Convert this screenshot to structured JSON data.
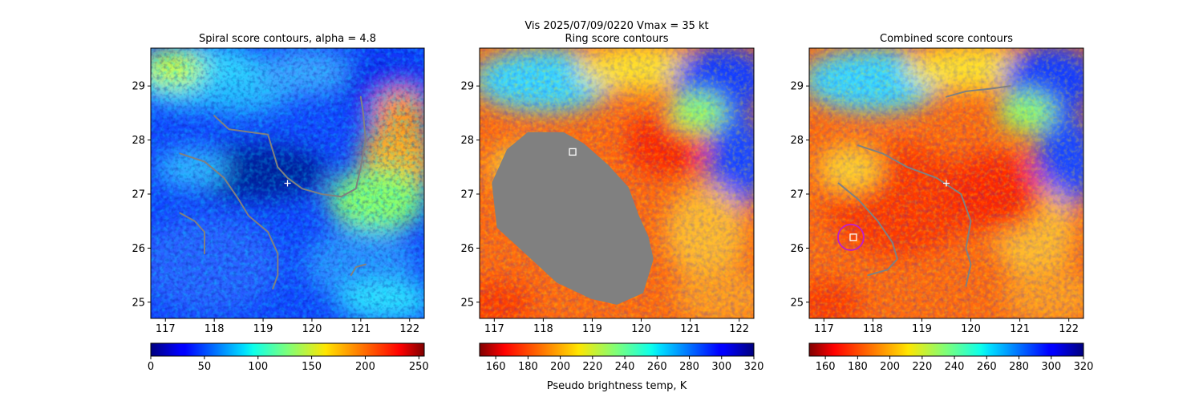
{
  "suptitle": "Vis  2025/07/09/0220    Vmax = 35 kt",
  "chart_data": [
    {
      "type": "heatmap",
      "title": "Spiral score contours, alpha =  4.8",
      "xlim": [
        116.7,
        122.3
      ],
      "ylim": [
        24.7,
        29.7
      ],
      "xticks": [
        "117",
        "118",
        "119",
        "120",
        "121",
        "122"
      ],
      "yticks": [
        "25",
        "26",
        "27",
        "28",
        "29"
      ],
      "xtick_values": [
        117,
        118,
        119,
        120,
        121,
        122
      ],
      "ytick_values": [
        25,
        26,
        27,
        28,
        29
      ],
      "colormap": "jet",
      "colorbar": {
        "range": [
          0,
          255
        ],
        "reversed": false,
        "ticks": [
          "0",
          "50",
          "100",
          "150",
          "200",
          "250"
        ],
        "tick_values": [
          0,
          50,
          100,
          150,
          200,
          250
        ],
        "label": ""
      },
      "contours": [
        [
          [
            118.0,
            28.45
          ],
          [
            118.3,
            28.2
          ],
          [
            118.7,
            28.15
          ],
          [
            119.1,
            28.1
          ],
          [
            119.2,
            27.8
          ],
          [
            119.3,
            27.5
          ],
          [
            119.5,
            27.3
          ],
          [
            119.8,
            27.1
          ],
          [
            120.2,
            27.0
          ],
          [
            120.6,
            26.95
          ],
          [
            120.9,
            27.1
          ],
          [
            121.0,
            27.5
          ],
          [
            121.1,
            28.0
          ],
          [
            121.05,
            28.5
          ],
          [
            121.0,
            28.8
          ]
        ],
        [
          [
            117.3,
            27.75
          ],
          [
            117.8,
            27.6
          ],
          [
            118.2,
            27.3
          ],
          [
            118.5,
            26.9
          ],
          [
            118.7,
            26.6
          ],
          [
            119.1,
            26.3
          ],
          [
            119.3,
            25.9
          ],
          [
            119.3,
            25.5
          ],
          [
            119.2,
            25.25
          ]
        ],
        [
          [
            117.3,
            26.65
          ],
          [
            117.6,
            26.5
          ],
          [
            117.8,
            26.3
          ],
          [
            117.8,
            25.9
          ]
        ],
        [
          [
            120.8,
            25.5
          ],
          [
            120.9,
            25.65
          ],
          [
            121.1,
            25.7
          ]
        ]
      ],
      "markers": [
        {
          "shape": "plus",
          "x": 119.5,
          "y": 27.2,
          "color": "#ffffff"
        }
      ]
    },
    {
      "type": "heatmap",
      "title": "Ring score contours",
      "xlim": [
        116.7,
        122.3
      ],
      "ylim": [
        24.7,
        29.7
      ],
      "xticks": [
        "117",
        "118",
        "119",
        "120",
        "121",
        "122"
      ],
      "yticks": [
        "25",
        "26",
        "27",
        "28",
        "29"
      ],
      "xtick_values": [
        117,
        118,
        119,
        120,
        121,
        122
      ],
      "ytick_values": [
        25,
        26,
        27,
        28,
        29
      ],
      "colormap": "jet",
      "colorbar": {
        "range": [
          150,
          320
        ],
        "reversed": true,
        "ticks": [
          "160",
          "180",
          "200",
          "220",
          "240",
          "260",
          "280",
          "300",
          "320"
        ],
        "tick_values": [
          160,
          180,
          200,
          220,
          240,
          260,
          280,
          300,
          320
        ],
        "label": "Pseudo brightness temp, K"
      },
      "filled_region": [
        [
          117.7,
          28.1
        ],
        [
          118.4,
          28.1
        ],
        [
          118.8,
          27.9
        ],
        [
          119.3,
          27.5
        ],
        [
          119.7,
          27.1
        ],
        [
          119.9,
          26.6
        ],
        [
          120.1,
          26.2
        ],
        [
          120.2,
          25.8
        ],
        [
          120.0,
          25.2
        ],
        [
          119.5,
          25.0
        ],
        [
          119.0,
          25.1
        ],
        [
          118.3,
          25.4
        ],
        [
          117.7,
          25.9
        ],
        [
          117.1,
          26.4
        ],
        [
          117.0,
          27.2
        ],
        [
          117.3,
          27.8
        ]
      ],
      "markers": [
        {
          "shape": "square",
          "x": 118.6,
          "y": 27.78,
          "color": "#ffffff"
        }
      ]
    },
    {
      "type": "heatmap",
      "title": "Combined score contours",
      "xlim": [
        116.7,
        122.3
      ],
      "ylim": [
        24.7,
        29.7
      ],
      "xticks": [
        "117",
        "118",
        "119",
        "120",
        "121",
        "122"
      ],
      "yticks": [
        "25",
        "26",
        "27",
        "28",
        "29"
      ],
      "xtick_values": [
        117,
        118,
        119,
        120,
        121,
        122
      ],
      "ytick_values": [
        25,
        26,
        27,
        28,
        29
      ],
      "colormap": "jet",
      "colorbar": {
        "range": [
          150,
          320
        ],
        "reversed": true,
        "ticks": [
          "160",
          "180",
          "200",
          "220",
          "240",
          "260",
          "280",
          "300",
          "320"
        ],
        "tick_values": [
          160,
          180,
          200,
          220,
          240,
          260,
          280,
          300,
          320
        ],
        "label": ""
      },
      "contours": [
        [
          [
            119.5,
            28.8
          ],
          [
            119.9,
            28.9
          ],
          [
            120.4,
            28.95
          ],
          [
            120.8,
            29.0
          ]
        ],
        [
          [
            117.7,
            27.9
          ],
          [
            118.2,
            27.75
          ],
          [
            118.7,
            27.5
          ],
          [
            119.3,
            27.3
          ],
          [
            119.8,
            27.0
          ],
          [
            120.0,
            26.5
          ],
          [
            119.9,
            26.0
          ],
          [
            120.0,
            25.7
          ],
          [
            119.9,
            25.3
          ]
        ],
        [
          [
            117.3,
            27.2
          ],
          [
            117.7,
            26.9
          ],
          [
            118.1,
            26.5
          ],
          [
            118.4,
            26.1
          ],
          [
            118.5,
            25.8
          ],
          [
            118.3,
            25.6
          ],
          [
            117.9,
            25.5
          ]
        ]
      ],
      "markers": [
        {
          "shape": "plus",
          "x": 119.5,
          "y": 27.2,
          "color": "#ffffff"
        },
        {
          "shape": "square",
          "x": 117.6,
          "y": 26.2,
          "color": "#ffffff"
        },
        {
          "shape": "circle",
          "x": 117.55,
          "y": 26.2,
          "color": "#c020c0"
        }
      ]
    }
  ],
  "colors": {
    "contour": "#808080",
    "ring_fill": "#808080",
    "axis": "#000000",
    "background": "#ffffff"
  }
}
